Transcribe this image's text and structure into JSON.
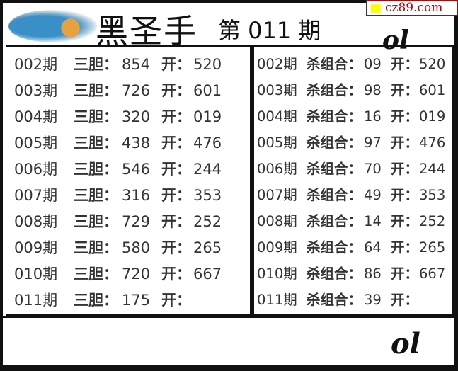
{
  "header": {
    "title": "黑圣手",
    "issue_label": "第 011 期",
    "watermark": "cz89.com",
    "signature": "ol"
  },
  "left": {
    "label": "三胆：",
    "open_label": "开：",
    "rows": [
      {
        "period": "002期",
        "value": "854",
        "open": "520"
      },
      {
        "period": "003期",
        "value": "726",
        "open": "601"
      },
      {
        "period": "004期",
        "value": "320",
        "open": "019"
      },
      {
        "period": "005期",
        "value": "438",
        "open": "476"
      },
      {
        "period": "006期",
        "value": "546",
        "open": "244"
      },
      {
        "period": "007期",
        "value": "316",
        "open": "353"
      },
      {
        "period": "008期",
        "value": "729",
        "open": "252"
      },
      {
        "period": "009期",
        "value": "580",
        "open": "265"
      },
      {
        "period": "010期",
        "value": "720",
        "open": "667"
      },
      {
        "period": "011期",
        "value": "175",
        "open": ""
      }
    ]
  },
  "right": {
    "label": "杀组合：",
    "open_label": "开：",
    "rows": [
      {
        "period": "002期",
        "value": "09",
        "open": "520"
      },
      {
        "period": "003期",
        "value": "98",
        "open": "601"
      },
      {
        "period": "004期",
        "value": "16",
        "open": "019"
      },
      {
        "period": "005期",
        "value": "97",
        "open": "476"
      },
      {
        "period": "006期",
        "value": "70",
        "open": "244"
      },
      {
        "period": "007期",
        "value": "49",
        "open": "353"
      },
      {
        "period": "008期",
        "value": "14",
        "open": "252"
      },
      {
        "period": "009期",
        "value": "64",
        "open": "265"
      },
      {
        "period": "010期",
        "value": "86",
        "open": "667"
      },
      {
        "period": "011期",
        "value": "39",
        "open": ""
      }
    ]
  },
  "footer": {
    "signature": "ol"
  }
}
